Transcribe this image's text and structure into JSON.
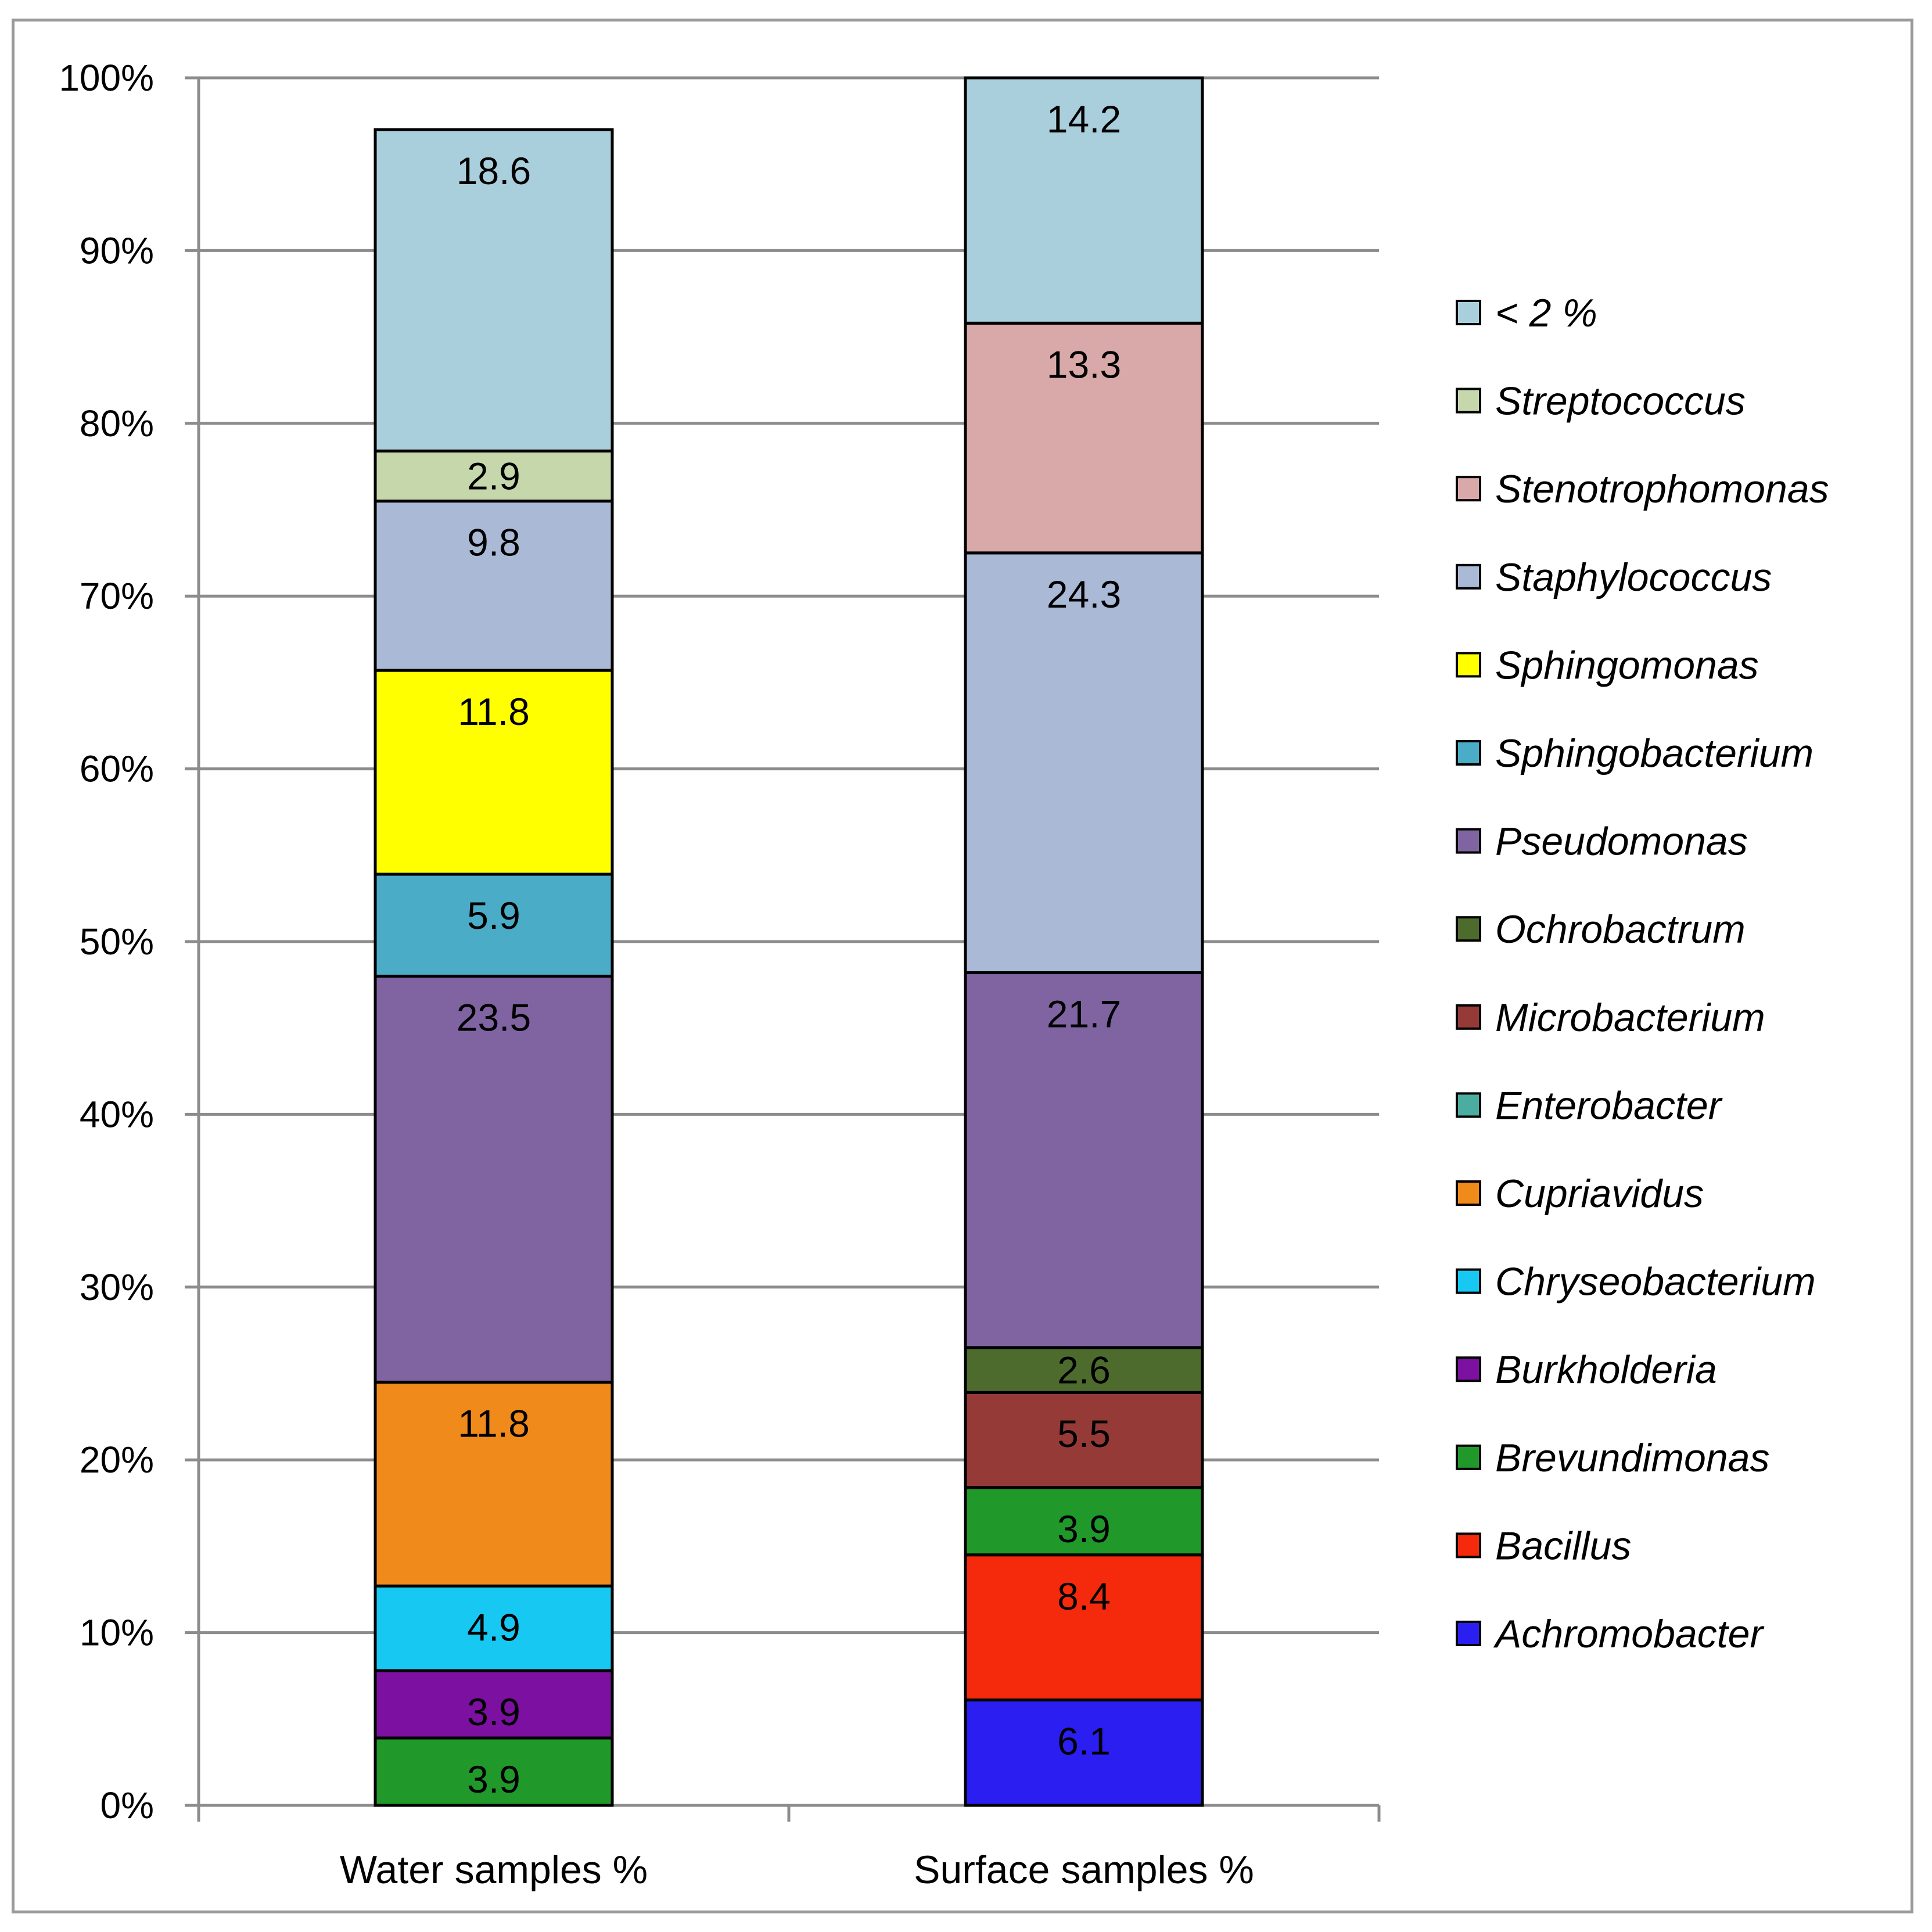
{
  "chart_data": {
    "type": "bar",
    "stacked": true,
    "percent_stacked": true,
    "title": "",
    "xlabel": "",
    "ylabel": "",
    "ylim": [
      0,
      100
    ],
    "y_ticks": [
      "0%",
      "10%",
      "20%",
      "30%",
      "40%",
      "50%",
      "60%",
      "70%",
      "80%",
      "90%",
      "100%"
    ],
    "grid": true,
    "legend_position": "right",
    "categories": [
      "Water samples %",
      "Surface samples %"
    ],
    "series": [
      {
        "name": "Achromobacter",
        "color": "#2A1FF0",
        "values": [
          0,
          6.1
        ],
        "labels": [
          "",
          "6.1"
        ]
      },
      {
        "name": "Bacillus",
        "color": "#F52A0C",
        "values": [
          0,
          8.4
        ],
        "labels": [
          "",
          "8.4"
        ]
      },
      {
        "name": "Brevundimonas",
        "color": "#20992A",
        "values": [
          3.9,
          3.9
        ],
        "labels": [
          "3.9",
          "3.9"
        ]
      },
      {
        "name": "Burkholderia",
        "color": "#7C10A0",
        "values": [
          3.9,
          0
        ],
        "labels": [
          "3.9",
          ""
        ]
      },
      {
        "name": "Chryseobacterium",
        "color": "#16C8F2",
        "values": [
          4.9,
          0
        ],
        "labels": [
          "4.9",
          ""
        ]
      },
      {
        "name": "Cupriavidus",
        "color": "#F08A1A",
        "values": [
          11.8,
          0
        ],
        "labels": [
          "11.8",
          ""
        ]
      },
      {
        "name": "Enterobacter",
        "color": "#4BACA0",
        "values": [
          0,
          0
        ],
        "labels": [
          "",
          ""
        ]
      },
      {
        "name": "Microbacterium",
        "color": "#963A37",
        "values": [
          0,
          5.5
        ],
        "labels": [
          "",
          "5.5"
        ]
      },
      {
        "name": "Ochrobactrum",
        "color": "#4E6B2E",
        "values": [
          0,
          2.6
        ],
        "labels": [
          "",
          "2.6"
        ]
      },
      {
        "name": "Pseudomonas",
        "color": "#8064A2",
        "values": [
          23.5,
          21.7
        ],
        "labels": [
          "23.5",
          "21.7"
        ]
      },
      {
        "name": "Sphingobacterium",
        "color": "#4AACC6",
        "values": [
          5.9,
          0
        ],
        "labels": [
          "5.9",
          ""
        ]
      },
      {
        "name": "Sphingomonas",
        "color": "#FFFF00",
        "values": [
          11.8,
          0
        ],
        "labels": [
          "11.8",
          ""
        ]
      },
      {
        "name": "Staphylococcus",
        "color": "#AAB9D6",
        "values": [
          9.8,
          24.3
        ],
        "labels": [
          "9.8",
          "24.3"
        ]
      },
      {
        "name": "Stenotrophomonas",
        "color": "#D9A9A9",
        "values": [
          0,
          13.3
        ],
        "labels": [
          "",
          "13.3"
        ]
      },
      {
        "name": "Streptococcus",
        "color": "#C5D7AB",
        "values": [
          2.9,
          0
        ],
        "labels": [
          "2.9",
          ""
        ]
      },
      {
        "name": "< 2 %",
        "color": "#A9CEDC",
        "values": [
          18.6,
          14.2
        ],
        "labels": [
          "18.6",
          "14.2"
        ]
      }
    ],
    "legend_order": [
      "< 2 %",
      "Streptococcus",
      "Stenotrophomonas",
      "Staphylococcus",
      "Sphingomonas",
      "Sphingobacterium",
      "Pseudomonas",
      "Ochrobactrum",
      "Microbacterium",
      "Enterobacter",
      "Cupriavidus",
      "Chryseobacterium",
      "Burkholderia",
      "Brevundimonas",
      "Bacillus",
      "Achromobacter"
    ]
  }
}
